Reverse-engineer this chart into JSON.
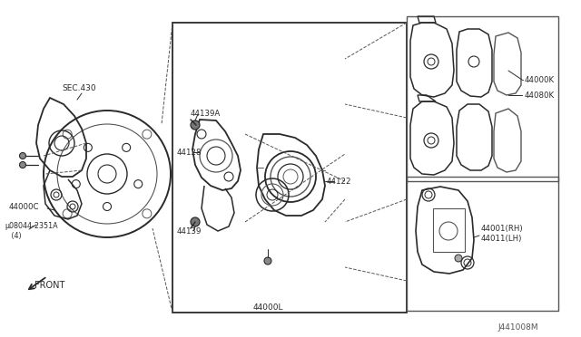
{
  "bg_color": "#ffffff",
  "lc": "#2a2a2a",
  "lg": "#999999",
  "dg": "#555555",
  "fig_id": "J441008M",
  "labels": {
    "sec430": "SEC.430",
    "l44000C": "44000C",
    "l08044": "µ08044-2351A\n   (4)",
    "l44139A": "44139A",
    "l44128": "44128",
    "l44139": "44139",
    "l44122": "44122",
    "l44000L": "44000L",
    "l44000K": "44000K",
    "l44080K": "44080K",
    "l44001RH": "44001(RH)\n44011(LH)",
    "front": "FRONT"
  }
}
